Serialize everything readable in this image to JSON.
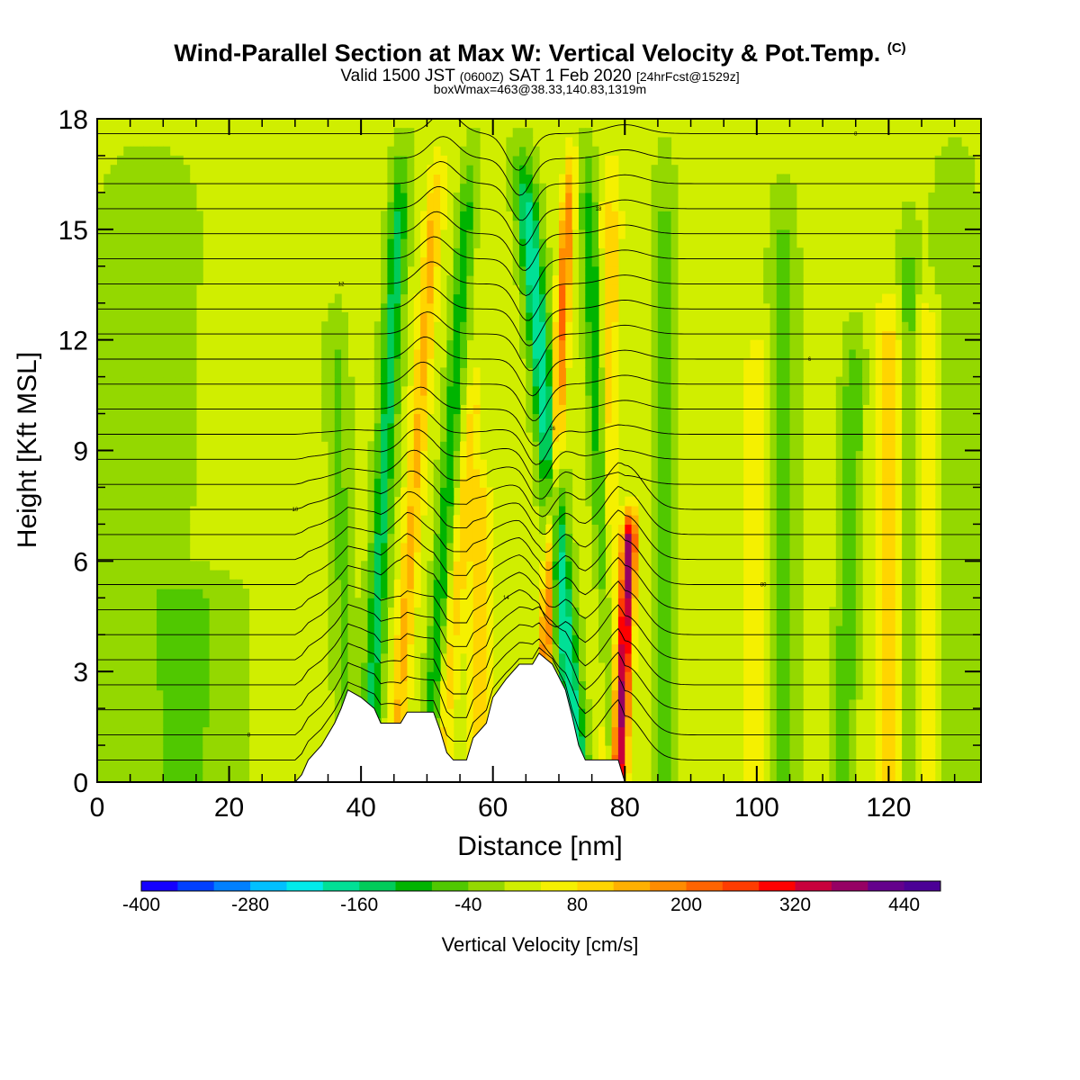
{
  "header": {
    "title": "Wind-Parallel Section at Max W: Vertical Velocity & Pot.Temp.",
    "copyright": "(C)",
    "valid_prefix": "Valid 1500 JST",
    "valid_utc": "(0600Z)",
    "valid_suffix": "SAT 1 Feb 2020",
    "forecast": "[24hrFcst@1529z]",
    "boxwmax": "boxWmax=463@38.33,140.83,1319m"
  },
  "chart_data": {
    "type": "heatmap",
    "xlabel": "Distance [nm]",
    "ylabel": "Height [Kft MSL]",
    "xlim": [
      0,
      134
    ],
    "ylim": [
      0,
      18
    ],
    "x_ticks": [
      0,
      20,
      40,
      60,
      80,
      100,
      120
    ],
    "y_ticks": [
      0,
      3,
      6,
      9,
      12,
      15,
      18
    ],
    "colorbar": {
      "label": "Vertical Velocity [cm/s]",
      "tick_labels": [
        -400,
        -280,
        -160,
        -40,
        80,
        200,
        320,
        440
      ],
      "levels": [
        -400,
        -360,
        -320,
        -280,
        -240,
        -200,
        -160,
        -120,
        -80,
        -40,
        0,
        40,
        80,
        120,
        160,
        200,
        240,
        280,
        320,
        360,
        400,
        440,
        480
      ],
      "colors": [
        "#1400ff",
        "#0040ff",
        "#0080ff",
        "#00c0ff",
        "#00eaea",
        "#00e096",
        "#00cc5a",
        "#00b400",
        "#50c800",
        "#94d800",
        "#d0ee00",
        "#f5f000",
        "#ffd500",
        "#ffb000",
        "#ff8c00",
        "#ff6400",
        "#ff3c00",
        "#ff0000",
        "#c8003c",
        "#960064",
        "#64008c",
        "#4b0096"
      ]
    },
    "terrain": [
      [
        0,
        0
      ],
      [
        30,
        0
      ],
      [
        31,
        0.2
      ],
      [
        32,
        0.6
      ],
      [
        34,
        1.0
      ],
      [
        36,
        1.6
      ],
      [
        37,
        2.0
      ],
      [
        38,
        2.5
      ],
      [
        40,
        2.3
      ],
      [
        42,
        2.0
      ],
      [
        43,
        1.6
      ],
      [
        46,
        1.6
      ],
      [
        47,
        1.9
      ],
      [
        51,
        1.9
      ],
      [
        52,
        1.4
      ],
      [
        53,
        0.8
      ],
      [
        54,
        0.6
      ],
      [
        56,
        0.6
      ],
      [
        57,
        1.2
      ],
      [
        59,
        1.6
      ],
      [
        60,
        2.3
      ],
      [
        62,
        2.8
      ],
      [
        64,
        3.2
      ],
      [
        66,
        3.2
      ],
      [
        67,
        3.5
      ],
      [
        69,
        3.2
      ],
      [
        71,
        2.5
      ],
      [
        72,
        1.8
      ],
      [
        73,
        1.0
      ],
      [
        74,
        0.6
      ],
      [
        76,
        0.6
      ],
      [
        79,
        0.6
      ],
      [
        80,
        0
      ]
    ],
    "velocity_features": [
      {
        "x": 38,
        "x_top": 36,
        "top": 13.5,
        "w": -60,
        "halfwidth": 1.6
      },
      {
        "x": 41,
        "x_top": 46.5,
        "top": 18,
        "w": -150,
        "halfwidth": 1.4
      },
      {
        "x": 45,
        "x_top": 52,
        "top": 18,
        "w": 120,
        "halfwidth": 1.4
      },
      {
        "x": 50,
        "x_top": 57,
        "top": 18,
        "w": -120,
        "halfwidth": 1.2
      },
      {
        "x": 52,
        "x_top": 58,
        "top": 12,
        "w": 80,
        "halfwidth": 1.4
      },
      {
        "x": 58,
        "x_top": 58,
        "top": 9,
        "w": 90,
        "halfwidth": 1.8
      },
      {
        "x": 73,
        "x_top": 64,
        "top": 18,
        "w": -210,
        "halfwidth": 1.6
      },
      {
        "x": 67,
        "x_top": 72,
        "top": 18,
        "w": 200,
        "halfwidth": 1.0
      },
      {
        "x": 78,
        "x_top": 74,
        "top": 18,
        "w": -130,
        "halfwidth": 1.2
      },
      {
        "x": 79,
        "x_top": 81,
        "top": 7.8,
        "w": 360,
        "halfwidth": 1.1
      },
      {
        "x": 77,
        "x_top": 78,
        "top": 18,
        "w": 90,
        "halfwidth": 1.6
      },
      {
        "x": 86,
        "x_top": 86,
        "top": 18,
        "w": -60,
        "halfwidth": 1.5
      },
      {
        "x": 100,
        "x_top": 100,
        "top": 13,
        "w": 70,
        "halfwidth": 2.0
      },
      {
        "x": 104,
        "x_top": 104,
        "top": 17,
        "w": -70,
        "halfwidth": 1.8
      },
      {
        "x": 113,
        "x_top": 115,
        "top": 13,
        "w": -90,
        "halfwidth": 1.5
      },
      {
        "x": 120,
        "x_top": 120,
        "top": 14,
        "w": 90,
        "halfwidth": 2.2
      },
      {
        "x": 126,
        "x_top": 126,
        "top": 14,
        "w": 80,
        "halfwidth": 2.0
      },
      {
        "x": 123,
        "x_top": 123,
        "top": 16,
        "w": -80,
        "halfwidth": 1.4
      },
      {
        "x": 5,
        "x_top": 8,
        "top": 18,
        "w": -40,
        "halfwidth": 7
      },
      {
        "x": 15,
        "x_top": 15,
        "top": 6,
        "w": -50,
        "halfwidth": 6
      },
      {
        "x": 130,
        "x_top": 130,
        "top": 18,
        "w": -50,
        "halfwidth": 3
      }
    ],
    "theta_contour_labels": [
      "6",
      "8",
      "10",
      "12",
      "14",
      "16",
      "18",
      "80"
    ]
  }
}
